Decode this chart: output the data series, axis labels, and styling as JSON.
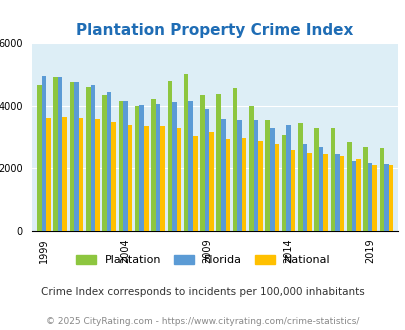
{
  "title": "Plantation Property Crime Index",
  "subtitle": "Crime Index corresponds to incidents per 100,000 inhabitants",
  "footer": "© 2025 CityRating.com - https://www.cityrating.com/crime-statistics/",
  "years": [
    1999,
    2000,
    2001,
    2002,
    2003,
    2004,
    2005,
    2006,
    2007,
    2008,
    2009,
    2010,
    2011,
    2012,
    2013,
    2014,
    2015,
    2016,
    2017,
    2018,
    2019,
    2020
  ],
  "plantation": [
    4650,
    4900,
    4750,
    4600,
    4350,
    4150,
    4000,
    4200,
    4800,
    5000,
    4350,
    4380,
    4550,
    3980,
    3550,
    3050,
    3450,
    3280,
    3280,
    2830,
    2680,
    2650
  ],
  "florida": [
    4950,
    4900,
    4750,
    4650,
    4420,
    4150,
    4020,
    4050,
    4100,
    4150,
    3900,
    3570,
    3540,
    3530,
    3270,
    3380,
    2780,
    2680,
    2470,
    2230,
    2160,
    2130
  ],
  "national": [
    3620,
    3640,
    3620,
    3580,
    3480,
    3390,
    3340,
    3340,
    3290,
    3020,
    3150,
    2950,
    2960,
    2870,
    2770,
    2590,
    2490,
    2460,
    2390,
    2290,
    2100,
    2100
  ],
  "plantation_color": "#8dc63f",
  "florida_color": "#5b9bd5",
  "national_color": "#ffc000",
  "bg_color": "#ddeef6",
  "title_color": "#1f6db5",
  "subtitle_color": "#333333",
  "footer_color": "#888888",
  "ylim": [
    0,
    6000
  ],
  "yticks": [
    0,
    2000,
    4000,
    6000
  ],
  "bar_width": 0.28,
  "tick_years": [
    1999,
    2004,
    2009,
    2014,
    2019
  ],
  "title_fontsize": 11,
  "legend_fontsize": 8,
  "subtitle_fontsize": 7.5,
  "footer_fontsize": 6.5,
  "tick_fontsize": 7
}
